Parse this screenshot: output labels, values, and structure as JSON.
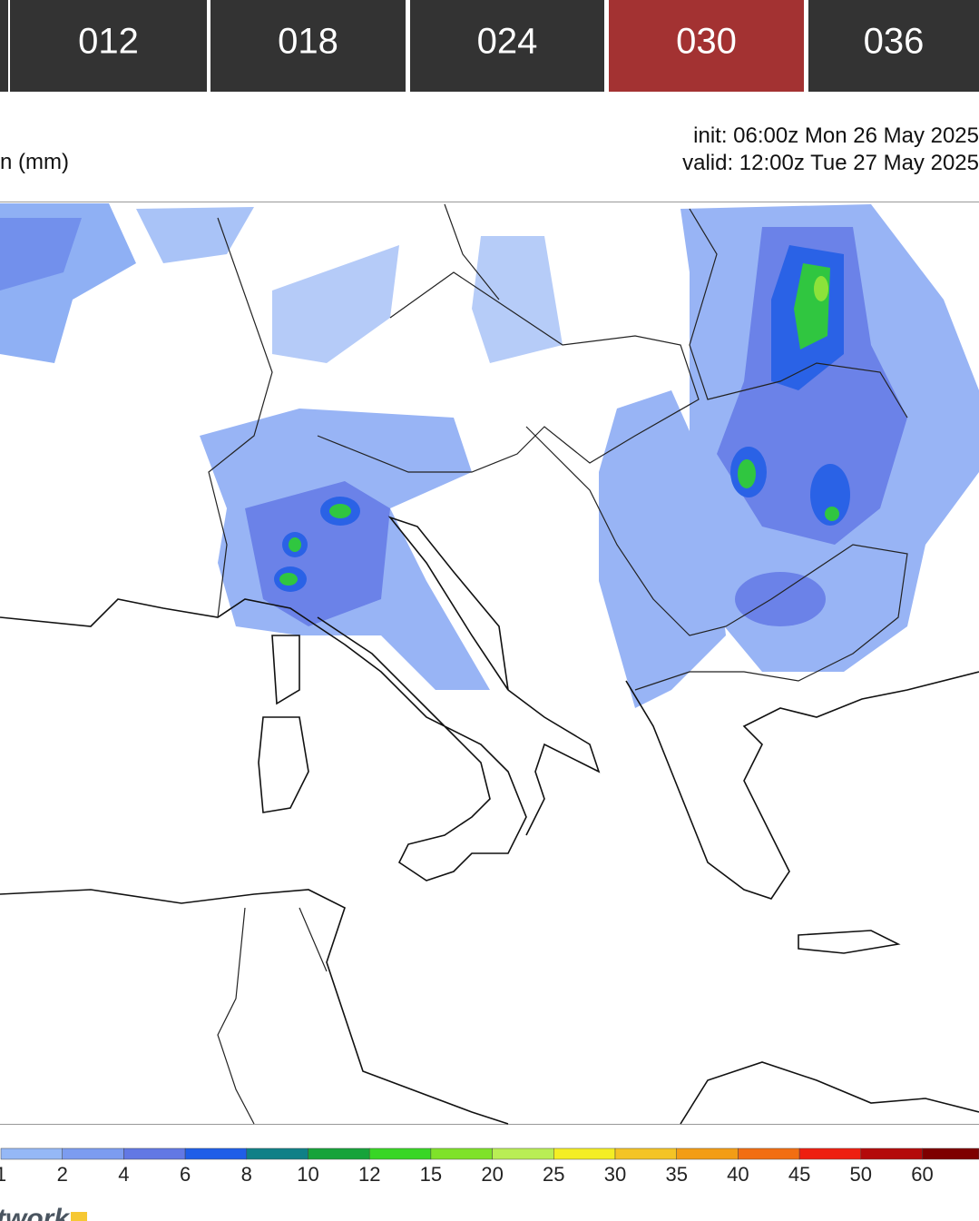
{
  "tabs": [
    {
      "label": "012"
    },
    {
      "label": "018"
    },
    {
      "label": "024"
    },
    {
      "label": "030",
      "selected": true
    },
    {
      "label": "036"
    }
  ],
  "header": {
    "title": "n (mm)",
    "init": "init: 06:00z Mon 26 May 2025",
    "valid": "valid: 12:00z Tue 27 May 2025"
  },
  "legend": {
    "ticks": [
      1,
      2,
      4,
      6,
      8,
      10,
      12,
      15,
      20,
      25,
      30,
      35,
      40,
      45,
      50,
      60
    ],
    "colors": [
      "#95b8f6",
      "#7c9cf0",
      "#6278e4",
      "#1f5ee8",
      "#0f8087",
      "#16a33a",
      "#38d625",
      "#7fe22a",
      "#b9ee55",
      "#f4ee24",
      "#f4c425",
      "#f39d15",
      "#f26e12",
      "#ee1f10",
      "#b40a0a",
      "#7e0000"
    ]
  },
  "footer": {
    "brand": "twork"
  }
}
